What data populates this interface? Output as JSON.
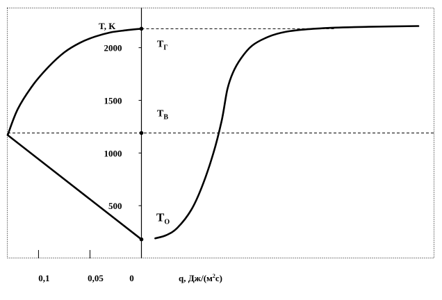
{
  "chart_data": {
    "type": "line",
    "ylabel": "T, K",
    "xlabel": "q, Дж/(м",
    "xlabel_sup": "2",
    "xlabel_end": "с)",
    "y_ticks": [
      {
        "value": 500,
        "label": "500"
      },
      {
        "value": 1000,
        "label": "1000"
      },
      {
        "value": 1500,
        "label": "1500"
      },
      {
        "value": 2000,
        "label": "2000"
      }
    ],
    "x_ticks": [
      {
        "value": 0.1,
        "label": "0,1"
      },
      {
        "value": 0.05,
        "label": "0,05"
      },
      {
        "value": 0,
        "label": "0"
      }
    ],
    "left_panel": {
      "x_range": [
        0.13,
        0
      ],
      "upper_curve": {
        "x": [
          0.13,
          0.12,
          0.105,
          0.09,
          0.075,
          0.06,
          0.045,
          0.03,
          0.015,
          0
        ],
        "y": [
          1170,
          1420,
          1650,
          1820,
          1955,
          2045,
          2105,
          2145,
          2165,
          2180
        ]
      },
      "lower_line": {
        "x": [
          0.13,
          0
        ],
        "y": [
          1170,
          180
        ]
      }
    },
    "right_panel": {
      "curve": {
        "x": [
          0.05,
          0.09,
          0.13,
          0.18,
          0.22,
          0.26,
          0.29,
          0.31,
          0.33,
          0.36,
          0.4,
          0.46,
          0.52,
          0.6,
          0.7,
          0.82,
          1.0
        ],
        "y": [
          190,
          220,
          290,
          460,
          690,
          1000,
          1310,
          1600,
          1760,
          1900,
          2020,
          2105,
          2150,
          2175,
          2190,
          2198,
          2205
        ]
      }
    },
    "levels": {
      "Tg": 2180,
      "Tv": 1190,
      "To": 180
    },
    "annotations": [
      {
        "id": "tg",
        "main": "T",
        "sub": "Г",
        "big": false
      },
      {
        "id": "tv",
        "main": "T",
        "sub": "B",
        "big": false
      },
      {
        "id": "to",
        "main": "T",
        "sub": "O",
        "big": true
      }
    ],
    "y_range": [
      0,
      2380
    ],
    "grid": false,
    "legend": "none"
  }
}
